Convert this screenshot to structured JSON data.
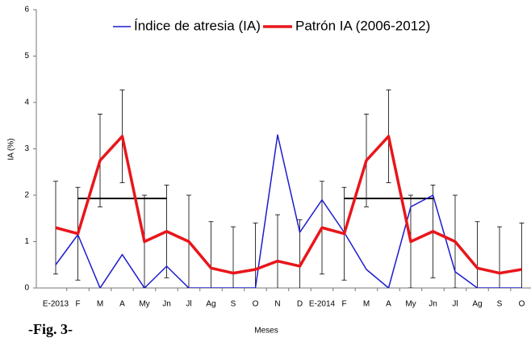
{
  "chart_data": {
    "type": "line",
    "caption": "-Fig. 3-",
    "x_label": "Meses",
    "y_label": "IA (%)",
    "categories": [
      "E-2013",
      "F",
      "M",
      "A",
      "My",
      "Jn",
      "Jl",
      "Ag",
      "S",
      "O",
      "N",
      "D",
      "E-2014",
      "F",
      "M",
      "A",
      "My",
      "Jn",
      "Jl",
      "Ag",
      "S",
      "O"
    ],
    "ylim": [
      0,
      6
    ],
    "yticks": [
      0,
      1,
      2,
      3,
      4,
      5,
      6
    ],
    "series": [
      {
        "name": "Índice de atresia (IA)",
        "color": "#1c1ccf",
        "values": [
          0.5,
          1.15,
          0,
          0.72,
          0,
          0.47,
          0,
          0,
          0,
          0,
          3.3,
          1.2,
          1.9,
          1.2,
          0.4,
          0,
          1.75,
          2.0,
          0.35,
          0,
          0,
          0
        ]
      },
      {
        "name": "Patrón IA (2006-2012)",
        "color": "#e8161b",
        "values": [
          1.3,
          1.17,
          2.75,
          3.27,
          1.0,
          1.22,
          1.0,
          0.43,
          0.32,
          0.4,
          0.58,
          0.47,
          1.3,
          1.17,
          2.75,
          3.27,
          1.0,
          1.22,
          1.0,
          0.43,
          0.32,
          0.4
        ],
        "errors": [
          1,
          1,
          1,
          1,
          1,
          1,
          1,
          1,
          1,
          1,
          1,
          1,
          1,
          1,
          1,
          1,
          1,
          1,
          1,
          1,
          1,
          1
        ]
      }
    ],
    "reference_lines": [
      {
        "value": 1.93,
        "from": 1,
        "to": 5
      },
      {
        "value": 1.93,
        "from": 13,
        "to": 17
      }
    ]
  }
}
